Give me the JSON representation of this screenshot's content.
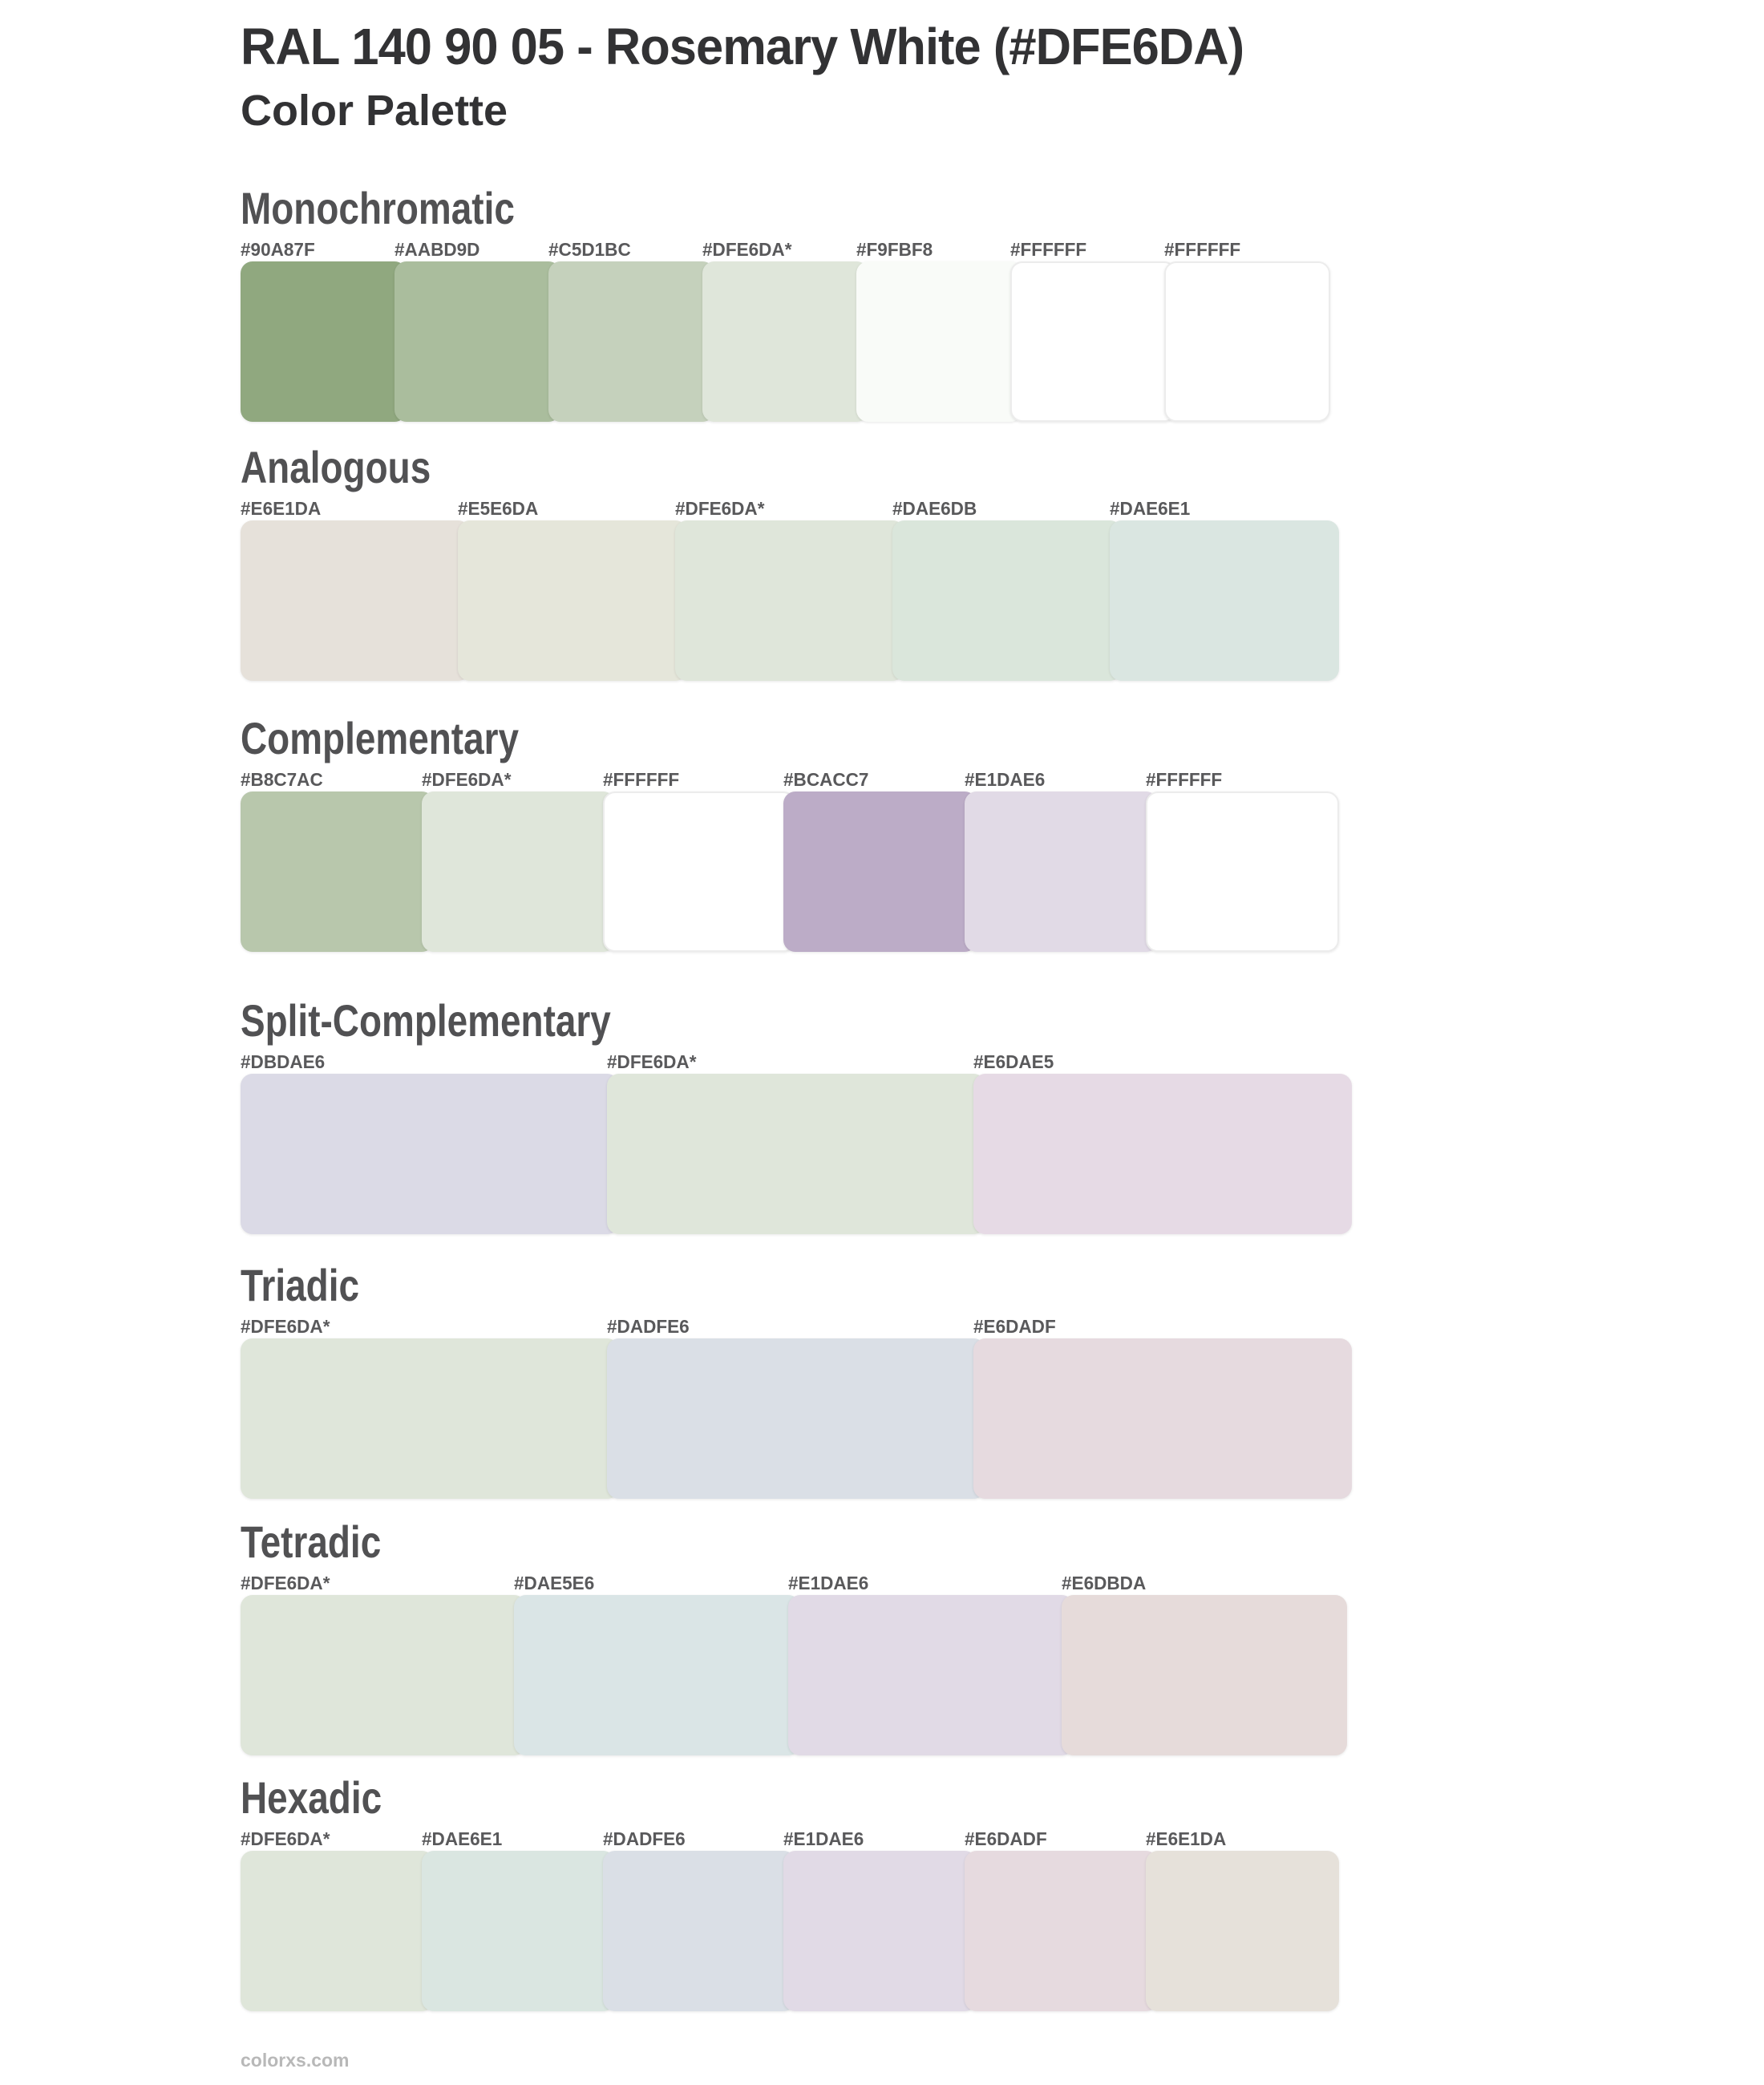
{
  "page": {
    "title": "RAL 140 90 05 - Rosemary White (#DFE6DA)",
    "subtitle": "Color Palette",
    "footer": "colorxs.com"
  },
  "base_color": "#DFE6DA",
  "sections": [
    {
      "name": "Monochromatic",
      "swatches": [
        {
          "label": "#90A87F",
          "color": "#90A87F"
        },
        {
          "label": "#AABD9D",
          "color": "#AABD9D"
        },
        {
          "label": "#C5D1BC",
          "color": "#C5D1BC"
        },
        {
          "label": "#DFE6DA*",
          "color": "#DFE6DA"
        },
        {
          "label": "#F9FBF8",
          "color": "#F9FBF8"
        },
        {
          "label": "#FFFFFF",
          "color": "#FFFFFF"
        },
        {
          "label": "#FFFFFF",
          "color": "#FFFFFF"
        }
      ]
    },
    {
      "name": "Analogous",
      "swatches": [
        {
          "label": "#E6E1DA",
          "color": "#E6E1DA"
        },
        {
          "label": "#E5E6DA",
          "color": "#E5E6DA"
        },
        {
          "label": "#DFE6DA*",
          "color": "#DFE6DA"
        },
        {
          "label": "#DAE6DB",
          "color": "#DAE6DB"
        },
        {
          "label": "#DAE6E1",
          "color": "#DAE6E1"
        }
      ]
    },
    {
      "name": "Complementary",
      "swatches": [
        {
          "label": "#B8C7AC",
          "color": "#B8C7AC"
        },
        {
          "label": "#DFE6DA*",
          "color": "#DFE6DA"
        },
        {
          "label": "#FFFFFF",
          "color": "#FFFFFF"
        },
        {
          "label": "#BCACC7",
          "color": "#BCACC7"
        },
        {
          "label": "#E1DAE6",
          "color": "#E1DAE6"
        },
        {
          "label": "#FFFFFF",
          "color": "#FFFFFF"
        }
      ]
    },
    {
      "name": "Split-Complementary",
      "swatches": [
        {
          "label": "#DBDAE6",
          "color": "#DBDAE6"
        },
        {
          "label": "#DFE6DA*",
          "color": "#DFE6DA"
        },
        {
          "label": "#E6DAE5",
          "color": "#E6DAE5"
        }
      ]
    },
    {
      "name": "Triadic",
      "swatches": [
        {
          "label": "#DFE6DA*",
          "color": "#DFE6DA"
        },
        {
          "label": "#DADFE6",
          "color": "#DADFE6"
        },
        {
          "label": "#E6DADF",
          "color": "#E6DADF"
        }
      ]
    },
    {
      "name": "Tetradic",
      "swatches": [
        {
          "label": "#DFE6DA*",
          "color": "#DFE6DA"
        },
        {
          "label": "#DAE5E6",
          "color": "#DAE5E6"
        },
        {
          "label": "#E1DAE6",
          "color": "#E1DAE6"
        },
        {
          "label": "#E6DBDA",
          "color": "#E6DBDA"
        }
      ]
    },
    {
      "name": "Hexadic",
      "swatches": [
        {
          "label": "#DFE6DA*",
          "color": "#DFE6DA"
        },
        {
          "label": "#DAE6E1",
          "color": "#DAE6E1"
        },
        {
          "label": "#DADFE6",
          "color": "#DADFE6"
        },
        {
          "label": "#E1DAE6",
          "color": "#E1DAE6"
        },
        {
          "label": "#E6DADF",
          "color": "#E6DADF"
        },
        {
          "label": "#E6E1DA",
          "color": "#E6E1DA"
        }
      ]
    }
  ]
}
